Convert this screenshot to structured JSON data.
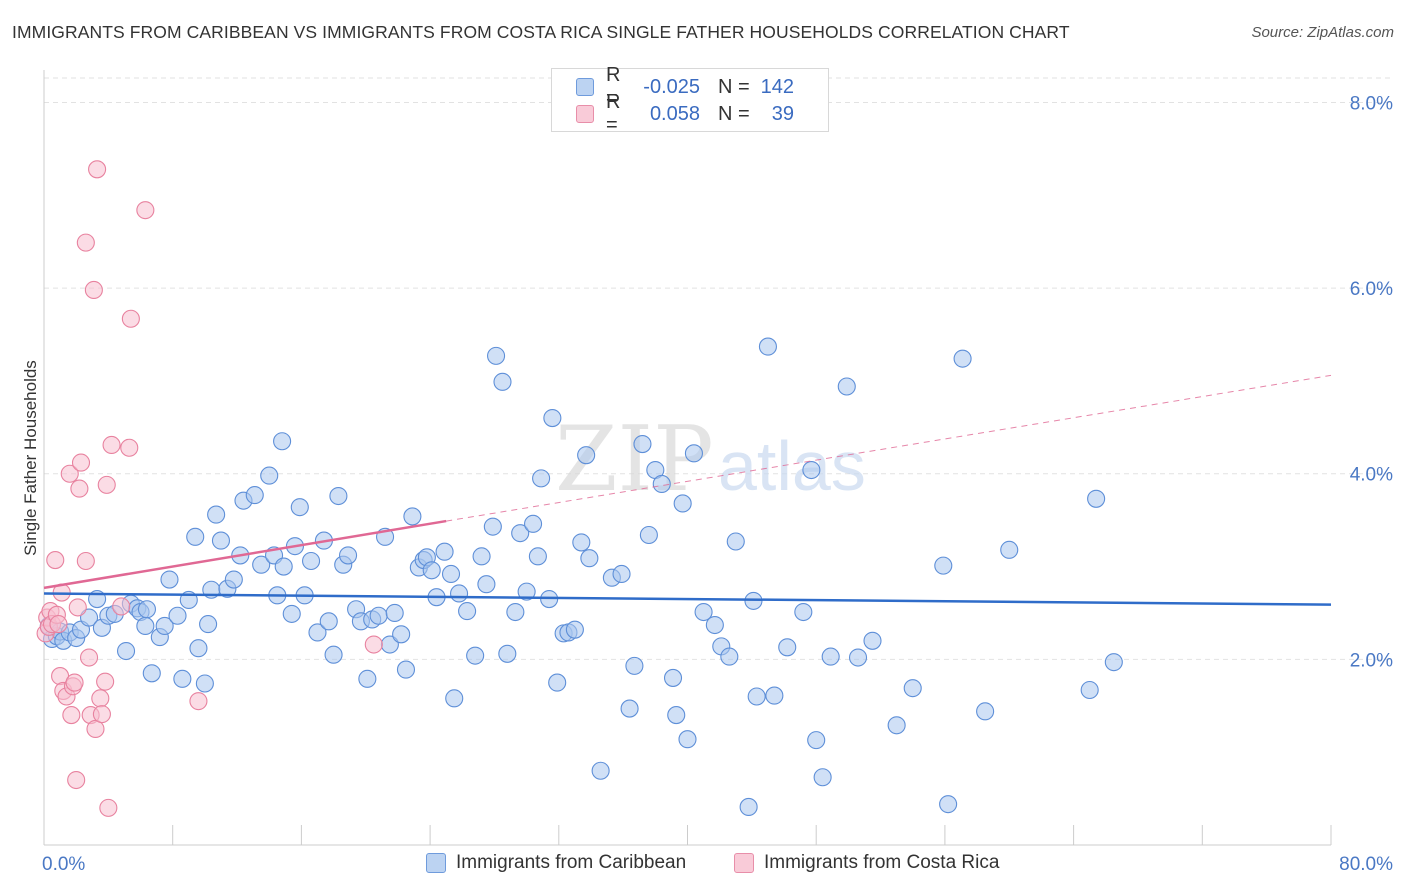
{
  "title": "IMMIGRANTS FROM CARIBBEAN VS IMMIGRANTS FROM COSTA RICA SINGLE FATHER HOUSEHOLDS CORRELATION CHART",
  "source": "Source: ZipAtlas.com",
  "watermark": {
    "zip": "ZIP",
    "atlas": "atlas"
  },
  "colors": {
    "caribbean_fill": "#a9c6ee",
    "caribbean_stroke": "#5e8fd8",
    "caribbean_line": "#2f6cc9",
    "costarica_fill": "#f7bfcf",
    "costarica_stroke": "#e8829f",
    "costarica_line": "#e06894",
    "axis_text": "#4a78c4",
    "grid": "#e2e2e2"
  },
  "legend_top": {
    "rows": [
      {
        "r_label": "R =",
        "r_value": "-0.025",
        "n_label": "N =",
        "n_value": "142"
      },
      {
        "r_label": "R =",
        "r_value": "0.058",
        "n_label": "N =",
        "n_value": "39"
      }
    ]
  },
  "legend_bottom": [
    "Immigrants from Caribbean",
    "Immigrants from Costa Rica"
  ],
  "chart_data": {
    "type": "scatter",
    "ylabel": "Single Father Households",
    "xlim": [
      0,
      80
    ],
    "ylim": [
      0,
      8.35
    ],
    "x_tick_labels": [
      "0.0%",
      "80.0%"
    ],
    "y_ticks": [
      2,
      4,
      6,
      8
    ],
    "y_tick_labels": [
      "2.0%",
      "4.0%",
      "6.0%",
      "8.0%"
    ],
    "grid": "horizontal dashed",
    "legend": "top-center",
    "series": [
      {
        "name": "Immigrants from Caribbean",
        "regression": {
          "x0": 0,
          "y0": 2.71,
          "x1": 80,
          "y1": 2.59
        },
        "points": [
          [
            0.3,
            2.36
          ],
          [
            0.5,
            2.22
          ],
          [
            0.8,
            2.25
          ],
          [
            1.0,
            2.3
          ],
          [
            1.2,
            2.2
          ],
          [
            1.6,
            2.29
          ],
          [
            2.0,
            2.23
          ],
          [
            2.3,
            2.32
          ],
          [
            2.8,
            2.45
          ],
          [
            3.3,
            2.65
          ],
          [
            3.6,
            2.34
          ],
          [
            4.0,
            2.47
          ],
          [
            4.4,
            2.49
          ],
          [
            5.1,
            2.09
          ],
          [
            5.4,
            2.6
          ],
          [
            5.8,
            2.55
          ],
          [
            6.0,
            2.51
          ],
          [
            6.4,
            2.54
          ],
          [
            6.3,
            2.36
          ],
          [
            6.7,
            1.85
          ],
          [
            7.2,
            2.24
          ],
          [
            7.5,
            2.36
          ],
          [
            7.8,
            2.86
          ],
          [
            8.3,
            2.47
          ],
          [
            8.6,
            1.79
          ],
          [
            9.0,
            2.64
          ],
          [
            9.4,
            3.32
          ],
          [
            9.6,
            2.12
          ],
          [
            10.0,
            1.74
          ],
          [
            10.2,
            2.38
          ],
          [
            10.4,
            2.75
          ],
          [
            10.7,
            3.56
          ],
          [
            11.0,
            3.28
          ],
          [
            11.4,
            2.76
          ],
          [
            11.8,
            2.86
          ],
          [
            12.2,
            3.12
          ],
          [
            12.4,
            3.71
          ],
          [
            13.1,
            3.77
          ],
          [
            13.5,
            3.02
          ],
          [
            14.0,
            3.98
          ],
          [
            14.3,
            3.12
          ],
          [
            14.5,
            2.69
          ],
          [
            14.8,
            4.35
          ],
          [
            14.9,
            3.0
          ],
          [
            15.4,
            2.49
          ],
          [
            15.6,
            3.22
          ],
          [
            15.9,
            3.64
          ],
          [
            16.2,
            2.69
          ],
          [
            16.6,
            3.06
          ],
          [
            17.0,
            2.29
          ],
          [
            17.4,
            3.28
          ],
          [
            17.7,
            2.41
          ],
          [
            18.0,
            2.05
          ],
          [
            18.3,
            3.76
          ],
          [
            18.6,
            3.02
          ],
          [
            18.9,
            3.12
          ],
          [
            19.4,
            2.54
          ],
          [
            19.7,
            2.41
          ],
          [
            20.1,
            1.79
          ],
          [
            20.4,
            2.43
          ],
          [
            20.8,
            2.47
          ],
          [
            21.2,
            3.32
          ],
          [
            21.5,
            2.16
          ],
          [
            21.8,
            2.5
          ],
          [
            22.2,
            2.27
          ],
          [
            22.5,
            1.89
          ],
          [
            22.9,
            3.54
          ],
          [
            23.3,
            2.99
          ],
          [
            23.6,
            3.07
          ],
          [
            23.8,
            3.1
          ],
          [
            24.1,
            2.96
          ],
          [
            24.4,
            2.67
          ],
          [
            24.9,
            3.16
          ],
          [
            25.3,
            2.92
          ],
          [
            25.5,
            1.58
          ],
          [
            25.8,
            2.71
          ],
          [
            26.3,
            2.52
          ],
          [
            26.8,
            2.04
          ],
          [
            27.2,
            3.11
          ],
          [
            27.5,
            2.81
          ],
          [
            27.9,
            3.43
          ],
          [
            28.1,
            5.27
          ],
          [
            28.5,
            4.99
          ],
          [
            28.8,
            2.06
          ],
          [
            29.3,
            2.51
          ],
          [
            29.6,
            3.36
          ],
          [
            30.0,
            2.73
          ],
          [
            30.4,
            3.46
          ],
          [
            30.7,
            3.11
          ],
          [
            30.9,
            3.95
          ],
          [
            31.4,
            2.65
          ],
          [
            31.6,
            4.6
          ],
          [
            31.9,
            1.75
          ],
          [
            32.3,
            2.28
          ],
          [
            32.6,
            2.29
          ],
          [
            33.0,
            2.32
          ],
          [
            33.4,
            3.26
          ],
          [
            33.7,
            4.2
          ],
          [
            33.9,
            3.09
          ],
          [
            34.6,
            0.8
          ],
          [
            35.3,
            2.88
          ],
          [
            35.9,
            2.92
          ],
          [
            36.4,
            1.47
          ],
          [
            36.7,
            1.93
          ],
          [
            37.2,
            4.32
          ],
          [
            37.6,
            3.34
          ],
          [
            38.0,
            4.04
          ],
          [
            38.4,
            3.89
          ],
          [
            39.1,
            1.8
          ],
          [
            39.3,
            1.4
          ],
          [
            39.7,
            3.68
          ],
          [
            40.0,
            1.14
          ],
          [
            40.4,
            4.22
          ],
          [
            41.0,
            2.51
          ],
          [
            41.7,
            2.37
          ],
          [
            42.1,
            2.14
          ],
          [
            42.6,
            2.03
          ],
          [
            43.0,
            3.27
          ],
          [
            43.8,
            0.41
          ],
          [
            44.1,
            2.63
          ],
          [
            44.3,
            1.6
          ],
          [
            45.0,
            5.37
          ],
          [
            45.4,
            1.61
          ],
          [
            46.2,
            2.13
          ],
          [
            47.2,
            2.51
          ],
          [
            47.7,
            4.04
          ],
          [
            48.0,
            1.13
          ],
          [
            48.4,
            0.73
          ],
          [
            48.9,
            2.03
          ],
          [
            49.9,
            4.94
          ],
          [
            50.6,
            2.02
          ],
          [
            51.5,
            2.2
          ],
          [
            53.0,
            1.29
          ],
          [
            54.0,
            1.69
          ],
          [
            55.9,
            3.01
          ],
          [
            56.2,
            0.44
          ],
          [
            57.1,
            5.24
          ],
          [
            58.5,
            1.44
          ],
          [
            60.0,
            3.18
          ],
          [
            65.0,
            1.67
          ],
          [
            65.4,
            3.73
          ],
          [
            66.5,
            1.97
          ]
        ]
      },
      {
        "name": "Immigrants from Costa Rica",
        "regression": {
          "x0": 0,
          "y0": 2.77,
          "x1": 25,
          "y1": 3.49,
          "dashed_to_x": 80,
          "dashed_to_y": 5.06
        },
        "points": [
          [
            0.1,
            2.28
          ],
          [
            0.2,
            2.45
          ],
          [
            0.3,
            2.35
          ],
          [
            0.4,
            2.52
          ],
          [
            0.5,
            2.38
          ],
          [
            0.7,
            3.07
          ],
          [
            0.8,
            2.48
          ],
          [
            0.9,
            2.38
          ],
          [
            1.0,
            1.82
          ],
          [
            1.1,
            2.72
          ],
          [
            1.2,
            1.66
          ],
          [
            1.4,
            1.6
          ],
          [
            1.6,
            4.0
          ],
          [
            1.7,
            1.4
          ],
          [
            1.8,
            1.71
          ],
          [
            1.9,
            1.75
          ],
          [
            2.0,
            0.7
          ],
          [
            2.1,
            2.56
          ],
          [
            2.2,
            3.84
          ],
          [
            2.3,
            4.12
          ],
          [
            2.6,
            3.06
          ],
          [
            2.6,
            6.49
          ],
          [
            2.8,
            2.02
          ],
          [
            2.9,
            1.4
          ],
          [
            3.1,
            5.98
          ],
          [
            3.2,
            1.25
          ],
          [
            3.3,
            7.28
          ],
          [
            3.5,
            1.58
          ],
          [
            3.6,
            1.41
          ],
          [
            3.8,
            1.76
          ],
          [
            3.9,
            3.88
          ],
          [
            4.0,
            0.4
          ],
          [
            4.2,
            4.31
          ],
          [
            5.3,
            4.28
          ],
          [
            5.4,
            5.67
          ],
          [
            4.8,
            2.57
          ],
          [
            6.3,
            6.84
          ],
          [
            9.6,
            1.55
          ],
          [
            20.5,
            2.16
          ]
        ]
      }
    ]
  }
}
